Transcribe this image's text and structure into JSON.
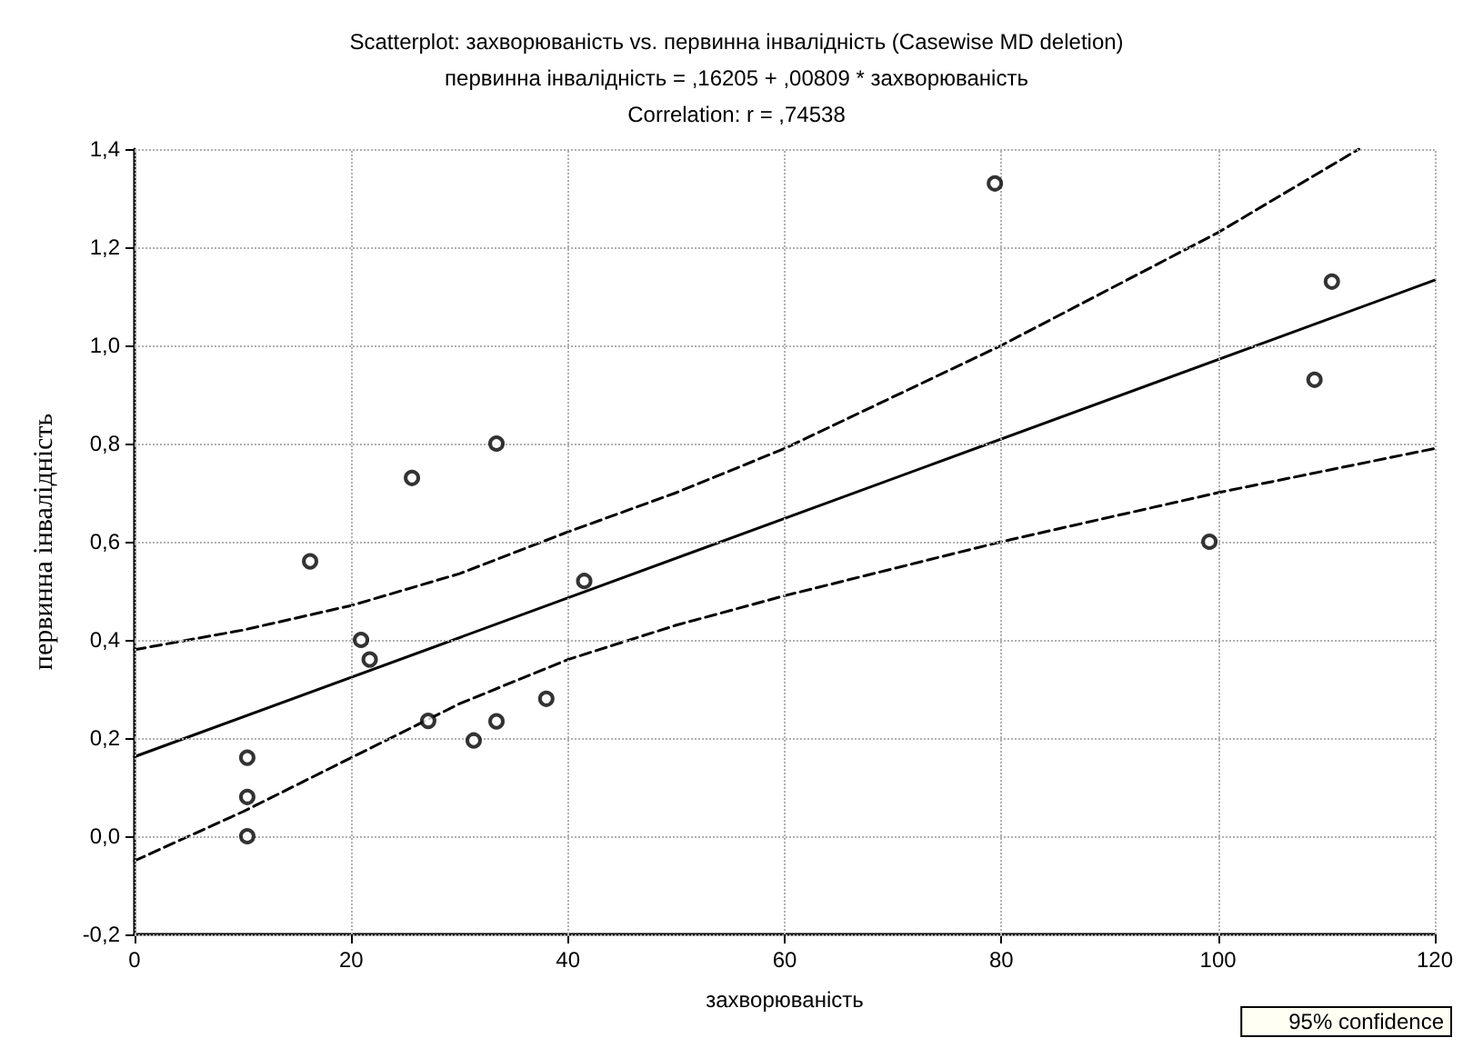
{
  "chart_data": {
    "type": "scatter",
    "title": "Scatterplot: захворюваність vs. первинна інвалідність (Casewise MD deletion)",
    "subtitle": "первинна інвалідність = ,16205 + ,00809 * захворюваність",
    "annotations": [
      "Correlation: r = ,74538"
    ],
    "xlabel": "захворюваність",
    "ylabel": "первинна інвалідність",
    "xlim": [
      0,
      120
    ],
    "xticks": [
      0,
      20,
      40,
      60,
      80,
      100,
      120
    ],
    "ylim": [
      -0.2,
      1.4
    ],
    "yticks": [
      {
        "value": -0.2,
        "label": "-0,2"
      },
      {
        "value": 0,
        "label": "0,0"
      },
      {
        "value": 0.2,
        "label": "0,2"
      },
      {
        "value": 0.4,
        "label": "0,4"
      },
      {
        "value": 0.6,
        "label": "0,6"
      },
      {
        "value": 0.8,
        "label": "0,8"
      },
      {
        "value": 1.0,
        "label": "1,0"
      },
      {
        "value": 1.2,
        "label": "1,2"
      },
      {
        "value": 1.4,
        "label": "1,4"
      }
    ],
    "grid": true,
    "legend": "bottom right",
    "series": [
      {
        "type": "scatter",
        "color": "#000000",
        "marker": "circle",
        "x": [
          10.4,
          10.4,
          10.4,
          16.2,
          20.9,
          21.7,
          25.6,
          27.1,
          31.3,
          33.4,
          33.4,
          38.0,
          41.5,
          79.4,
          99.2,
          108.9,
          110.5
        ],
        "values": [
          0.0,
          0.08,
          0.16,
          0.56,
          0.4,
          0.36,
          0.73,
          0.235,
          0.195,
          0.234,
          0.8,
          0.28,
          0.52,
          1.33,
          0.6,
          0.93,
          1.13
        ]
      },
      {
        "type": "line",
        "color": "#000000",
        "line_style": "solid",
        "marker": "none",
        "x": [
          0,
          120
        ],
        "values": [
          0.162,
          1.133
        ]
      },
      {
        "type": "line",
        "name": "95% confidence",
        "color": "#000000",
        "line_style": "dashed",
        "marker": "none",
        "x": [
          0,
          10,
          20,
          30,
          40,
          50,
          60,
          80,
          100,
          113
        ],
        "values": [
          0.38,
          0.42,
          0.47,
          0.535,
          0.62,
          0.7,
          0.79,
          1.0,
          1.23,
          1.4
        ]
      },
      {
        "type": "line",
        "color": "#000000",
        "line_style": "dashed",
        "marker": "none",
        "x": [
          0,
          10,
          20,
          30,
          40,
          50,
          60,
          80,
          100,
          120
        ],
        "values": [
          -0.05,
          0.05,
          0.16,
          0.27,
          0.36,
          0.43,
          0.49,
          0.6,
          0.7,
          0.79
        ]
      }
    ]
  }
}
